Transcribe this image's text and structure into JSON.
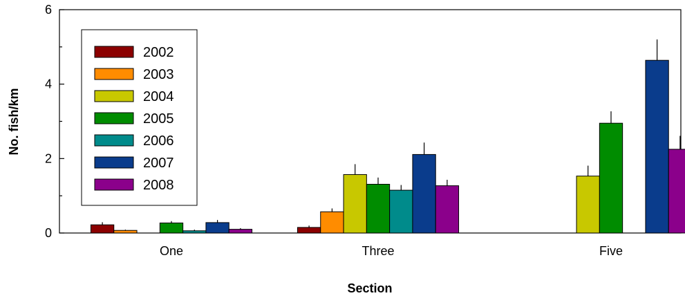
{
  "chart_data": {
    "type": "bar",
    "categories": [
      "One",
      "Three",
      "Five"
    ],
    "xlabel": "Section",
    "ylabel": "No. fish/km",
    "ylim": [
      0,
      6
    ],
    "yticks": [
      0,
      2,
      4,
      6
    ],
    "grid": false,
    "legend_position": "top-left",
    "error_bars": true,
    "series": [
      {
        "name": "2002",
        "color": "#8b0000",
        "values": [
          0.22,
          0.15,
          null
        ],
        "errors": [
          0.07,
          0.05,
          null
        ]
      },
      {
        "name": "2003",
        "color": "#ff8c00",
        "values": [
          0.07,
          0.57,
          null
        ],
        "errors": [
          0.02,
          0.09,
          null
        ]
      },
      {
        "name": "2004",
        "color": "#c8c800",
        "values": [
          null,
          1.57,
          1.53
        ],
        "errors": [
          null,
          0.28,
          0.28
        ]
      },
      {
        "name": "2005",
        "color": "#008c00",
        "values": [
          0.27,
          1.31,
          2.95
        ],
        "errors": [
          0.05,
          0.18,
          0.32
        ]
      },
      {
        "name": "2006",
        "color": "#008b8b",
        "values": [
          0.06,
          1.15,
          null
        ],
        "errors": [
          0.03,
          0.14,
          null
        ]
      },
      {
        "name": "2007",
        "color": "#0a3c8c",
        "values": [
          0.28,
          2.11,
          4.64
        ],
        "errors": [
          0.07,
          0.32,
          0.56
        ]
      },
      {
        "name": "2008",
        "color": "#8b008b",
        "values": [
          0.1,
          1.27,
          2.25
        ],
        "errors": [
          0.03,
          0.16,
          0.36
        ]
      }
    ]
  }
}
